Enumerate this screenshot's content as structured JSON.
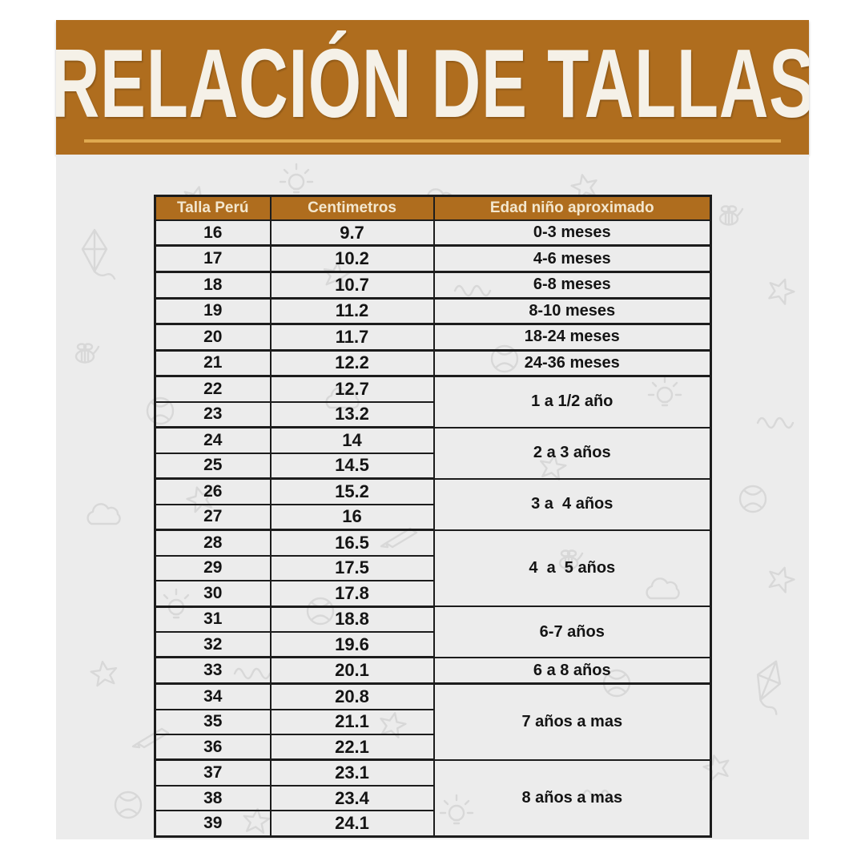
{
  "banner": {
    "title": "RELACIÓN DE TALLAS"
  },
  "theme": {
    "banner_bg": "#AF6D1E",
    "underline": "#DFA94F",
    "banner_text": "#F5F1E8",
    "header_bg": "#AF6D1E",
    "header_text": "#F3E7CF",
    "page_bg": "#ECECEC",
    "doodle": "#D8D8D8",
    "table_border": "#1C1C1C"
  },
  "table": {
    "header": {
      "columns": [
        "Talla Perú",
        "Centimetros",
        "Edad niño aproximado"
      ]
    },
    "rows": [
      {
        "size": "16",
        "cm": "9.7",
        "age": "0-3 meses",
        "span": 1
      },
      {
        "size": "17",
        "cm": "10.2",
        "age": "4-6 meses",
        "span": 1
      },
      {
        "size": "18",
        "cm": "10.7",
        "age": "6-8 meses",
        "span": 1
      },
      {
        "size": "19",
        "cm": "11.2",
        "age": "8-10 meses",
        "span": 1
      },
      {
        "size": "20",
        "cm": "11.7",
        "age": "18-24 meses",
        "span": 1
      },
      {
        "size": "21",
        "cm": "12.2",
        "age": "24-36 meses",
        "span": 1
      },
      {
        "size": "22",
        "cm": "12.7",
        "age": "1 a 1/2 año",
        "span": 2
      },
      {
        "size": "23",
        "cm": "13.2"
      },
      {
        "size": "24",
        "cm": "14",
        "age": "2 a 3 años",
        "span": 2
      },
      {
        "size": "25",
        "cm": "14.5"
      },
      {
        "size": "26",
        "cm": "15.2",
        "age": "3 a  4 años",
        "span": 2
      },
      {
        "size": "27",
        "cm": "16"
      },
      {
        "size": "28",
        "cm": "16.5",
        "age": "4  a  5 años",
        "span": 3
      },
      {
        "size": "29",
        "cm": "17.5"
      },
      {
        "size": "30",
        "cm": "17.8"
      },
      {
        "size": "31",
        "cm": "18.8",
        "age": "6-7 años",
        "span": 2
      },
      {
        "size": "32",
        "cm": "19.6"
      },
      {
        "size": "33",
        "cm": "20.1",
        "age": "6 a 8 años",
        "span": 1
      },
      {
        "size": "34",
        "cm": "20.8",
        "age": "7 años a mas",
        "span": 3
      },
      {
        "size": "35",
        "cm": "21.1"
      },
      {
        "size": "36",
        "cm": "22.1"
      },
      {
        "size": "37",
        "cm": "23.1",
        "age": "8 años a mas",
        "span": 3
      },
      {
        "size": "38",
        "cm": "23.4"
      },
      {
        "size": "39",
        "cm": "24.1"
      }
    ]
  }
}
